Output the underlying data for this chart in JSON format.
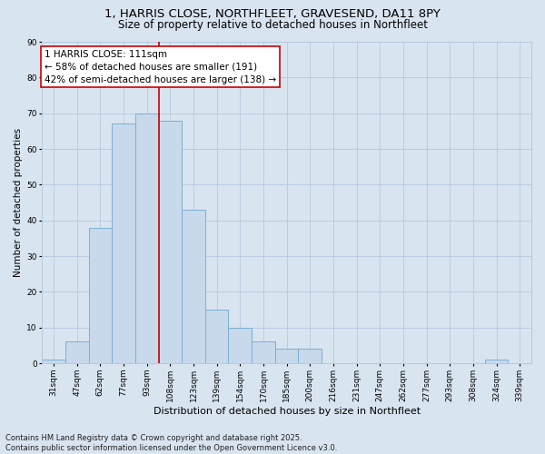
{
  "title_line1": "1, HARRIS CLOSE, NORTHFLEET, GRAVESEND, DA11 8PY",
  "title_line2": "Size of property relative to detached houses in Northfleet",
  "xlabel": "Distribution of detached houses by size in Northfleet",
  "ylabel": "Number of detached properties",
  "categories": [
    "31sqm",
    "47sqm",
    "62sqm",
    "77sqm",
    "93sqm",
    "108sqm",
    "123sqm",
    "139sqm",
    "154sqm",
    "170sqm",
    "185sqm",
    "200sqm",
    "216sqm",
    "231sqm",
    "247sqm",
    "262sqm",
    "277sqm",
    "293sqm",
    "308sqm",
    "324sqm",
    "339sqm"
  ],
  "values": [
    1,
    6,
    38,
    67,
    70,
    68,
    43,
    15,
    10,
    6,
    4,
    4,
    0,
    0,
    0,
    0,
    0,
    0,
    0,
    1,
    0
  ],
  "bar_color": "#c8d9ec",
  "bar_edge_color": "#7aafd4",
  "annotation_line1": "1 HARRIS CLOSE: 111sqm",
  "annotation_line2": "← 58% of detached houses are smaller (191)",
  "annotation_line3": "42% of semi-detached houses are larger (138) →",
  "annotation_box_facecolor": "#ffffff",
  "annotation_box_edgecolor": "#cc0000",
  "vline_color": "#cc0000",
  "vline_x": 4.5,
  "ylim": [
    0,
    90
  ],
  "yticks": [
    0,
    10,
    20,
    30,
    40,
    50,
    60,
    70,
    80,
    90
  ],
  "grid_color": "#b8c8dc",
  "background_color": "#d8e4f0",
  "footnote": "Contains HM Land Registry data © Crown copyright and database right 2025.\nContains public sector information licensed under the Open Government Licence v3.0.",
  "title_fontsize": 9.5,
  "subtitle_fontsize": 8.5,
  "xlabel_fontsize": 8,
  "ylabel_fontsize": 7.5,
  "tick_fontsize": 6.5,
  "annotation_fontsize": 7.5,
  "footnote_fontsize": 6
}
